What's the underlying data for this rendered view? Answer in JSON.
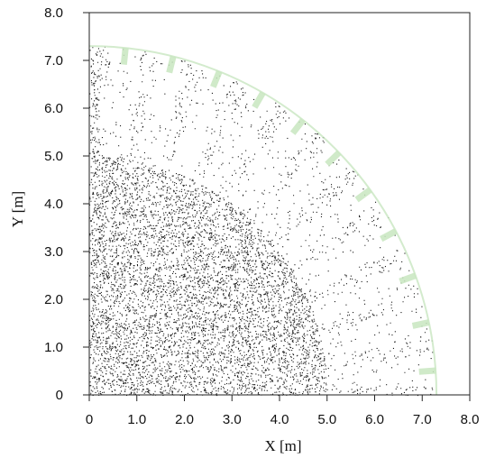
{
  "chart_data": {
    "type": "scatter",
    "title": "",
    "xlabel": "X  [m]",
    "ylabel": "Y  [m]",
    "xlim": [
      0,
      8
    ],
    "ylim": [
      0,
      8
    ],
    "x_ticks": [
      "0",
      "1.0",
      "2.0",
      "3.0",
      "4.0",
      "5.0",
      "6.0",
      "7.0",
      "8.0"
    ],
    "y_ticks": [
      "0",
      "1.0",
      "2.0",
      "3.0",
      "4.0",
      "5.0",
      "6.0",
      "7.0",
      "8.0"
    ],
    "grid": false,
    "legend": "none",
    "point_color": "#000000",
    "rim_color": "#c8e6c0",
    "series": [
      {
        "shape": "quarter-annulus particle cloud",
        "outer_radius": 7.3,
        "dense_core_radius": 5.4,
        "radial_bands": 11,
        "band_angles_deg": [
          4,
          12,
          20,
          28,
          36,
          44,
          52,
          60,
          68,
          76,
          84
        ],
        "band_start_radius": 5.3
      }
    ]
  }
}
